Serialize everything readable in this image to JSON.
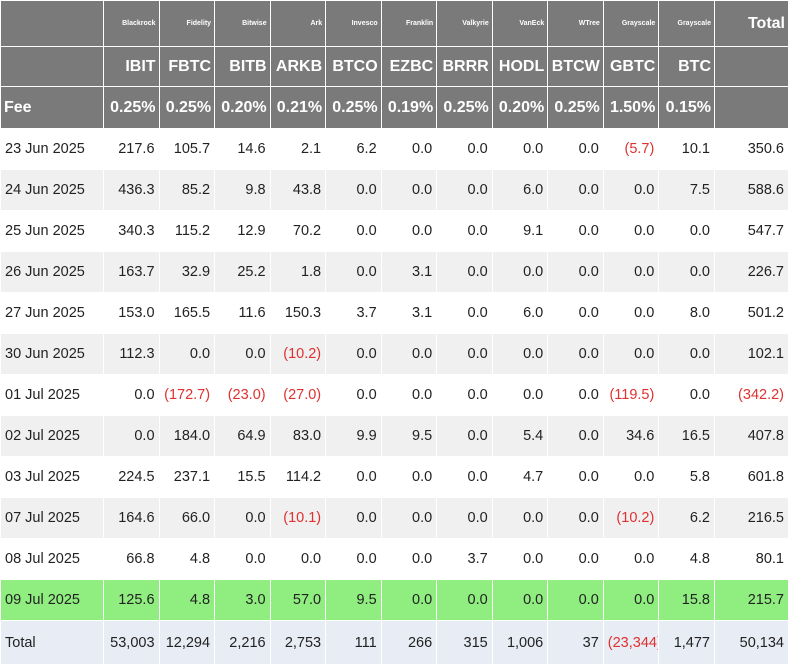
{
  "issuers": [
    "Blackrock",
    "Fidelity",
    "Bitwise",
    "Ark",
    "Invesco",
    "Franklin",
    "Valkyrie",
    "VanEck",
    "WTree",
    "Grayscale",
    "Grayscale"
  ],
  "total_label": "Total",
  "tickers": [
    "IBIT",
    "FBTC",
    "BITB",
    "ARKB",
    "BTCO",
    "EZBC",
    "BRRR",
    "HODL",
    "BTCW",
    "GBTC",
    "BTC"
  ],
  "fee_label": "Fee",
  "fees": [
    "0.25%",
    "0.25%",
    "0.20%",
    "0.21%",
    "0.25%",
    "0.19%",
    "0.25%",
    "0.20%",
    "0.25%",
    "1.50%",
    "0.15%"
  ],
  "rows": [
    {
      "date": "23 Jun 2025",
      "values": [
        "217.6",
        "105.7",
        "14.6",
        "2.1",
        "6.2",
        "0.0",
        "0.0",
        "0.0",
        "0.0",
        "(5.7)",
        "10.1"
      ],
      "total": "350.6"
    },
    {
      "date": "24 Jun 2025",
      "values": [
        "436.3",
        "85.2",
        "9.8",
        "43.8",
        "0.0",
        "0.0",
        "0.0",
        "6.0",
        "0.0",
        "0.0",
        "7.5"
      ],
      "total": "588.6"
    },
    {
      "date": "25 Jun 2025",
      "values": [
        "340.3",
        "115.2",
        "12.9",
        "70.2",
        "0.0",
        "0.0",
        "0.0",
        "9.1",
        "0.0",
        "0.0",
        "0.0"
      ],
      "total": "547.7"
    },
    {
      "date": "26 Jun 2025",
      "values": [
        "163.7",
        "32.9",
        "25.2",
        "1.8",
        "0.0",
        "3.1",
        "0.0",
        "0.0",
        "0.0",
        "0.0",
        "0.0"
      ],
      "total": "226.7"
    },
    {
      "date": "27 Jun 2025",
      "values": [
        "153.0",
        "165.5",
        "11.6",
        "150.3",
        "3.7",
        "3.1",
        "0.0",
        "6.0",
        "0.0",
        "0.0",
        "8.0"
      ],
      "total": "501.2"
    },
    {
      "date": "30 Jun 2025",
      "values": [
        "112.3",
        "0.0",
        "0.0",
        "(10.2)",
        "0.0",
        "0.0",
        "0.0",
        "0.0",
        "0.0",
        "0.0",
        "0.0"
      ],
      "total": "102.1"
    },
    {
      "date": "01 Jul 2025",
      "values": [
        "0.0",
        "(172.7)",
        "(23.0)",
        "(27.0)",
        "0.0",
        "0.0",
        "0.0",
        "0.0",
        "0.0",
        "(119.5)",
        "0.0"
      ],
      "total": "(342.2)"
    },
    {
      "date": "02 Jul 2025",
      "values": [
        "0.0",
        "184.0",
        "64.9",
        "83.0",
        "9.9",
        "9.5",
        "0.0",
        "5.4",
        "0.0",
        "34.6",
        "16.5"
      ],
      "total": "407.8"
    },
    {
      "date": "03 Jul 2025",
      "values": [
        "224.5",
        "237.1",
        "15.5",
        "114.2",
        "0.0",
        "0.0",
        "0.0",
        "4.7",
        "0.0",
        "0.0",
        "5.8"
      ],
      "total": "601.8"
    },
    {
      "date": "07 Jul 2025",
      "values": [
        "164.6",
        "66.0",
        "0.0",
        "(10.1)",
        "0.0",
        "0.0",
        "0.0",
        "0.0",
        "0.0",
        "(10.2)",
        "6.2"
      ],
      "total": "216.5"
    },
    {
      "date": "08 Jul 2025",
      "values": [
        "66.8",
        "4.8",
        "0.0",
        "0.0",
        "0.0",
        "0.0",
        "3.7",
        "0.0",
        "0.0",
        "0.0",
        "4.8"
      ],
      "total": "80.1"
    },
    {
      "date": "09 Jul 2025",
      "values": [
        "125.6",
        "4.8",
        "3.0",
        "57.0",
        "9.5",
        "0.0",
        "0.0",
        "0.0",
        "0.0",
        "0.0",
        "15.8"
      ],
      "total": "215.7",
      "highlight": true
    }
  ],
  "totals_row": {
    "label": "Total",
    "values": [
      "53,003",
      "12,294",
      "2,216",
      "2,753",
      "111",
      "266",
      "315",
      "1,006",
      "37",
      "(23,344)",
      "1,477"
    ],
    "total": "50,134"
  },
  "colors": {
    "header_bg": "#7a7a7a",
    "negative": "#e03030",
    "highlight": "#90ee80",
    "total_row_bg": "#e8ecf4",
    "alt_row_bg": "#f0f0f0"
  }
}
